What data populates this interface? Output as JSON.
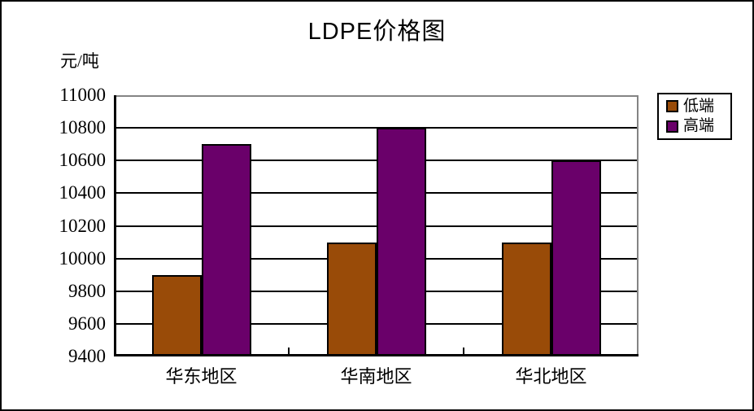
{
  "chart_data": {
    "type": "bar",
    "title": "LDPE价格图",
    "ylabel": "元/吨",
    "xlabel": "",
    "categories": [
      "华东地区",
      "华南地区",
      "华北地区"
    ],
    "series": [
      {
        "name": "低端",
        "color": "#994B08",
        "values": [
          9900,
          10100,
          10100
        ]
      },
      {
        "name": "高端",
        "color": "#6A006A",
        "values": [
          10700,
          10800,
          10600
        ]
      }
    ],
    "ylim": [
      9400,
      11000
    ],
    "ytick_step": 200,
    "yticks": [
      9400,
      9600,
      9800,
      10000,
      10200,
      10400,
      10600,
      10800,
      11000
    ],
    "grid": true,
    "legend_position": "right"
  },
  "colors": {
    "grid": "#000000",
    "axis": "#000000",
    "plot_frame": "#848484",
    "background": "#ffffff"
  }
}
